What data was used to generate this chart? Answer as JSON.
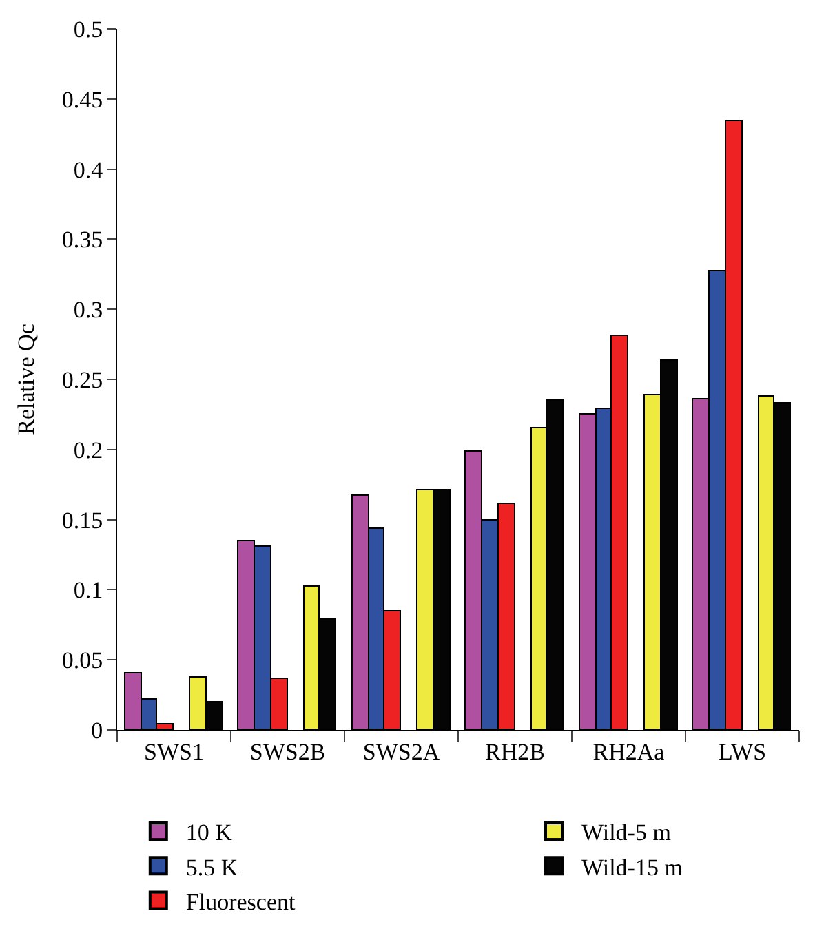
{
  "chart_data": {
    "type": "bar",
    "ylabel": "Relative Qc",
    "categories": [
      "SWS1",
      "SWS2B",
      "SWS2A",
      "RH2B",
      "RH2Aa",
      "LWS"
    ],
    "series": [
      {
        "name": "10 K",
        "color": "#b050a0",
        "values": [
          0.04,
          0.135,
          0.167,
          0.198,
          0.225,
          0.236
        ]
      },
      {
        "name": "5.5 K",
        "color": "#3050a0",
        "values": [
          0.022,
          0.131,
          0.143,
          0.149,
          0.229,
          0.327
        ]
      },
      {
        "name": "Fluorescent",
        "color": "#ee2222",
        "values": [
          0.004,
          0.036,
          0.084,
          0.161,
          0.281,
          0.434
        ]
      },
      {
        "name": "Wild-5 m",
        "color": "#eeea40",
        "values": [
          0.037,
          0.102,
          0.171,
          0.215,
          0.239,
          0.238
        ]
      },
      {
        "name": "Wild-15 m",
        "color": "#050505",
        "values": [
          0.02,
          0.079,
          0.171,
          0.235,
          0.263,
          0.233
        ]
      }
    ],
    "ylim": [
      0,
      0.5
    ],
    "yticks": [
      0,
      0.05,
      0.1,
      0.15,
      0.2,
      0.25,
      0.3,
      0.35,
      0.4,
      0.45,
      0.5
    ],
    "grid": false,
    "legend": "bottom"
  }
}
